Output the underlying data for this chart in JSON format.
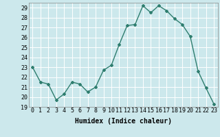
{
  "x": [
    0,
    1,
    2,
    3,
    4,
    5,
    6,
    7,
    8,
    9,
    10,
    11,
    12,
    13,
    14,
    15,
    16,
    17,
    18,
    19,
    20,
    21,
    22,
    23
  ],
  "y": [
    23.0,
    21.5,
    21.3,
    19.7,
    20.3,
    21.5,
    21.3,
    20.5,
    21.0,
    22.7,
    23.2,
    25.3,
    27.2,
    27.3,
    29.2,
    28.5,
    29.2,
    28.7,
    27.9,
    27.3,
    26.1,
    22.6,
    20.9,
    19.3
  ],
  "line_color": "#2e7d6e",
  "marker": "D",
  "marker_size": 2,
  "bg_color": "#cce8ec",
  "grid_color": "#ffffff",
  "xlabel": "Humidex (Indice chaleur)",
  "ylim": [
    19,
    29.5
  ],
  "yticks": [
    19,
    20,
    21,
    22,
    23,
    24,
    25,
    26,
    27,
    28,
    29
  ],
  "xticks": [
    0,
    1,
    2,
    3,
    4,
    5,
    6,
    7,
    8,
    9,
    10,
    11,
    12,
    13,
    14,
    15,
    16,
    17,
    18,
    19,
    20,
    21,
    22,
    23
  ],
  "xlabel_fontsize": 7,
  "tick_fontsize": 6,
  "line_width": 1.0
}
